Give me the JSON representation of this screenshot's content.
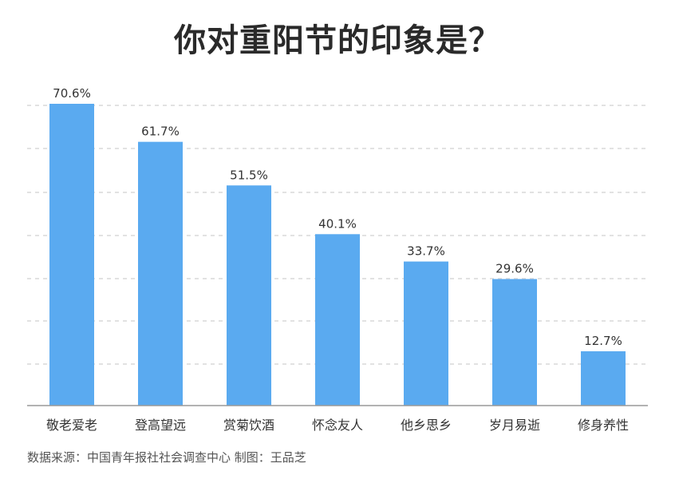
{
  "title": "你对重阳节的印象是？",
  "source": "数据来源：中国青年报社社会调查中心 制图：王品芝",
  "colors": {
    "bar": "#5aaaf0",
    "grid": "#d9d9d9",
    "axis": "#999999",
    "label": "#333333"
  },
  "chart_data": {
    "type": "bar",
    "title": "你对重阳节的印象是？",
    "categories": [
      "敬老爱老",
      "登高望远",
      "赏菊饮酒",
      "怀念友人",
      "他乡思乡",
      "岁月易逝",
      "修身养性"
    ],
    "values": [
      70.6,
      61.7,
      51.5,
      40.1,
      33.7,
      29.6,
      12.7
    ],
    "value_labels": [
      "70.6%",
      "61.7%",
      "51.5%",
      "40.1%",
      "33.7%",
      "29.6%",
      "12.7%"
    ],
    "unit": "%",
    "ylim": [
      0,
      70.6
    ],
    "grid": true,
    "legend": "none"
  }
}
